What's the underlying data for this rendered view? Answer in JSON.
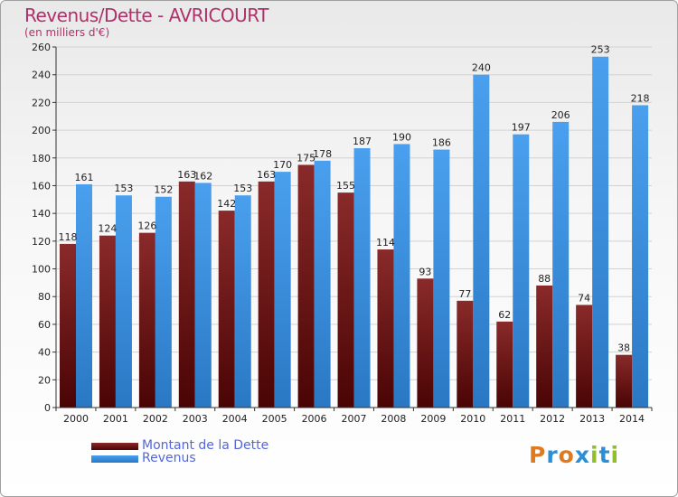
{
  "title": "Revenus/Dette - AVRICOURT",
  "subtitle": "(en milliers d'€)",
  "logo": "Proxiti",
  "colors": {
    "debt": "#6b1515",
    "revenue": "#3d8ee0",
    "title": "#b0306a",
    "legend_text": "#5567d8"
  },
  "legend": [
    {
      "label": "Montant de la Dette",
      "color": "#6b1515"
    },
    {
      "label": "Revenus",
      "color": "#3d8ee0"
    }
  ],
  "chart_data": {
    "type": "bar",
    "title": "Revenus/Dette - AVRICOURT",
    "subtitle": "(en milliers d'€)",
    "xlabel": "",
    "ylabel": "",
    "ylim": [
      0,
      260
    ],
    "yticks": [
      0,
      20,
      40,
      60,
      80,
      100,
      120,
      140,
      160,
      180,
      200,
      220,
      240,
      260
    ],
    "grid": true,
    "legend_position": "bottom-left",
    "categories": [
      "2000",
      "2001",
      "2002",
      "2003",
      "2004",
      "2005",
      "2006",
      "2007",
      "2008",
      "2009",
      "2010",
      "2011",
      "2012",
      "2013",
      "2014"
    ],
    "series": [
      {
        "name": "Montant de la Dette",
        "values": [
          118,
          124,
          126,
          163,
          142,
          163,
          175,
          155,
          114,
          93,
          77,
          62,
          88,
          74,
          38
        ]
      },
      {
        "name": "Revenus",
        "values": [
          161,
          153,
          152,
          162,
          153,
          170,
          178,
          187,
          190,
          186,
          240,
          197,
          206,
          253,
          218
        ]
      }
    ]
  }
}
